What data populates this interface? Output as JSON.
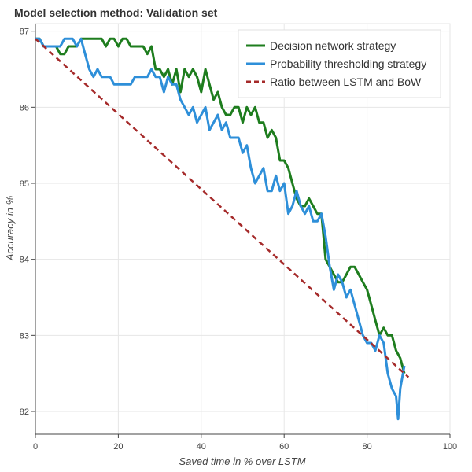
{
  "chart_data": {
    "type": "line",
    "title": "Model selection method: Validation set",
    "xlabel": "Saved time in % over LSTM",
    "ylabel": "Accuracy in %",
    "xlim": [
      0,
      100
    ],
    "ylim": [
      81.7,
      87.1
    ],
    "xticks": [
      0,
      20,
      40,
      60,
      80,
      100
    ],
    "yticks": [
      82,
      83,
      84,
      85,
      86,
      87
    ],
    "grid": true,
    "legend_position": "top-right",
    "series": [
      {
        "name": "Decision network strategy",
        "color": "#1e7d1e",
        "style": "solid",
        "points": [
          [
            0,
            86.9
          ],
          [
            1,
            86.9
          ],
          [
            2,
            86.8
          ],
          [
            3,
            86.8
          ],
          [
            4,
            86.8
          ],
          [
            5,
            86.8
          ],
          [
            6,
            86.7
          ],
          [
            7,
            86.7
          ],
          [
            8,
            86.8
          ],
          [
            9,
            86.8
          ],
          [
            10,
            86.8
          ],
          [
            11,
            86.9
          ],
          [
            12,
            86.9
          ],
          [
            14,
            86.9
          ],
          [
            16,
            86.9
          ],
          [
            17,
            86.8
          ],
          [
            18,
            86.9
          ],
          [
            19,
            86.9
          ],
          [
            20,
            86.8
          ],
          [
            21,
            86.9
          ],
          [
            22,
            86.9
          ],
          [
            23,
            86.8
          ],
          [
            24,
            86.8
          ],
          [
            25,
            86.8
          ],
          [
            26,
            86.8
          ],
          [
            27,
            86.7
          ],
          [
            28,
            86.8
          ],
          [
            29,
            86.5
          ],
          [
            30,
            86.5
          ],
          [
            31,
            86.4
          ],
          [
            32,
            86.5
          ],
          [
            33,
            86.3
          ],
          [
            34,
            86.5
          ],
          [
            35,
            86.2
          ],
          [
            36,
            86.5
          ],
          [
            37,
            86.4
          ],
          [
            38,
            86.5
          ],
          [
            39,
            86.4
          ],
          [
            40,
            86.2
          ],
          [
            41,
            86.5
          ],
          [
            42,
            86.3
          ],
          [
            43,
            86.1
          ],
          [
            44,
            86.2
          ],
          [
            45,
            86.0
          ],
          [
            46,
            85.9
          ],
          [
            47,
            85.9
          ],
          [
            48,
            86.0
          ],
          [
            49,
            86.0
          ],
          [
            50,
            85.8
          ],
          [
            51,
            86.0
          ],
          [
            52,
            85.9
          ],
          [
            53,
            86.0
          ],
          [
            54,
            85.8
          ],
          [
            55,
            85.8
          ],
          [
            56,
            85.6
          ],
          [
            57,
            85.7
          ],
          [
            58,
            85.6
          ],
          [
            59,
            85.3
          ],
          [
            60,
            85.3
          ],
          [
            61,
            85.2
          ],
          [
            62,
            85.0
          ],
          [
            63,
            84.8
          ],
          [
            64,
            84.7
          ],
          [
            65,
            84.7
          ],
          [
            66,
            84.8
          ],
          [
            67,
            84.7
          ],
          [
            68,
            84.6
          ],
          [
            69,
            84.6
          ],
          [
            70,
            84.0
          ],
          [
            71,
            83.9
          ],
          [
            72,
            83.8
          ],
          [
            73,
            83.7
          ],
          [
            74,
            83.7
          ],
          [
            75,
            83.8
          ],
          [
            76,
            83.9
          ],
          [
            77,
            83.9
          ],
          [
            78,
            83.8
          ],
          [
            79,
            83.7
          ],
          [
            80,
            83.6
          ],
          [
            81,
            83.4
          ],
          [
            82,
            83.2
          ],
          [
            83,
            83.0
          ],
          [
            84,
            83.1
          ],
          [
            85,
            83.0
          ],
          [
            86,
            83.0
          ],
          [
            87,
            82.8
          ],
          [
            88,
            82.7
          ],
          [
            89,
            82.5
          ]
        ]
      },
      {
        "name": "Probability thresholding strategy",
        "color": "#2e8fd9",
        "style": "solid",
        "points": [
          [
            0,
            86.9
          ],
          [
            1,
            86.9
          ],
          [
            2,
            86.8
          ],
          [
            3,
            86.8
          ],
          [
            4,
            86.8
          ],
          [
            5,
            86.8
          ],
          [
            6,
            86.8
          ],
          [
            7,
            86.9
          ],
          [
            8,
            86.9
          ],
          [
            9,
            86.9
          ],
          [
            10,
            86.8
          ],
          [
            11,
            86.9
          ],
          [
            12,
            86.7
          ],
          [
            13,
            86.5
          ],
          [
            14,
            86.4
          ],
          [
            15,
            86.5
          ],
          [
            16,
            86.4
          ],
          [
            17,
            86.4
          ],
          [
            18,
            86.4
          ],
          [
            19,
            86.3
          ],
          [
            20,
            86.3
          ],
          [
            21,
            86.3
          ],
          [
            22,
            86.3
          ],
          [
            23,
            86.3
          ],
          [
            24,
            86.4
          ],
          [
            25,
            86.4
          ],
          [
            26,
            86.4
          ],
          [
            27,
            86.4
          ],
          [
            28,
            86.5
          ],
          [
            29,
            86.4
          ],
          [
            30,
            86.4
          ],
          [
            31,
            86.2
          ],
          [
            32,
            86.4
          ],
          [
            33,
            86.3
          ],
          [
            34,
            86.3
          ],
          [
            35,
            86.1
          ],
          [
            36,
            86.0
          ],
          [
            37,
            85.9
          ],
          [
            38,
            86.0
          ],
          [
            39,
            85.8
          ],
          [
            40,
            85.9
          ],
          [
            41,
            86.0
          ],
          [
            42,
            85.7
          ],
          [
            43,
            85.8
          ],
          [
            44,
            85.9
          ],
          [
            45,
            85.7
          ],
          [
            46,
            85.8
          ],
          [
            47,
            85.6
          ],
          [
            48,
            85.6
          ],
          [
            49,
            85.6
          ],
          [
            50,
            85.4
          ],
          [
            51,
            85.5
          ],
          [
            52,
            85.2
          ],
          [
            53,
            85.0
          ],
          [
            54,
            85.1
          ],
          [
            55,
            85.2
          ],
          [
            56,
            84.9
          ],
          [
            57,
            84.9
          ],
          [
            58,
            85.1
          ],
          [
            59,
            84.9
          ],
          [
            60,
            85.0
          ],
          [
            61,
            84.6
          ],
          [
            62,
            84.7
          ],
          [
            63,
            84.9
          ],
          [
            64,
            84.7
          ],
          [
            65,
            84.6
          ],
          [
            66,
            84.7
          ],
          [
            67,
            84.5
          ],
          [
            68,
            84.5
          ],
          [
            69,
            84.6
          ],
          [
            70,
            84.3
          ],
          [
            71,
            83.9
          ],
          [
            72,
            83.6
          ],
          [
            73,
            83.8
          ],
          [
            74,
            83.7
          ],
          [
            75,
            83.5
          ],
          [
            76,
            83.6
          ],
          [
            77,
            83.4
          ],
          [
            78,
            83.2
          ],
          [
            79,
            83.0
          ],
          [
            80,
            82.9
          ],
          [
            81,
            82.9
          ],
          [
            82,
            82.8
          ],
          [
            83,
            83.0
          ],
          [
            84,
            82.9
          ],
          [
            85,
            82.5
          ],
          [
            86,
            82.3
          ],
          [
            87,
            82.2
          ],
          [
            87.5,
            81.9
          ],
          [
            88,
            82.3
          ],
          [
            89,
            82.6
          ]
        ]
      },
      {
        "name": "Ratio between LSTM and BoW",
        "color": "#a52a2a",
        "style": "dashed",
        "points": [
          [
            0,
            86.9
          ],
          [
            90,
            82.45
          ]
        ]
      }
    ]
  }
}
